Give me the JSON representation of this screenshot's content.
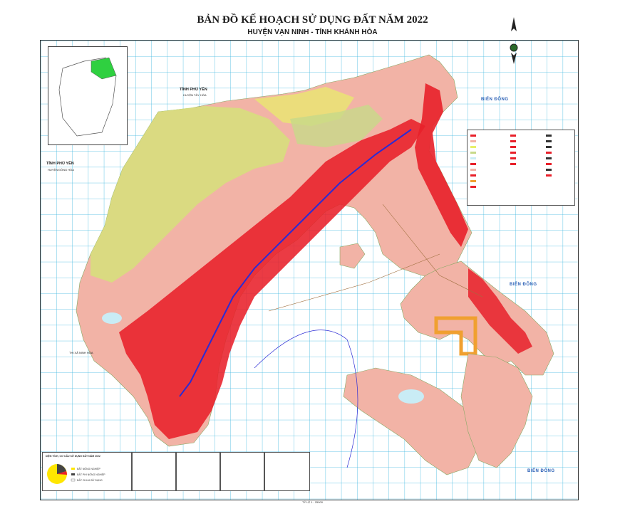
{
  "map": {
    "title": "BẢN ĐỒ KẾ HOẠCH SỬ DỤNG ĐẤT NĂM 2022",
    "subtitle": "HUYỆN VẠN NINH - TỈNH KHÁNH HÒA",
    "labels": {
      "tinh_phu_yen_top": "TỈNH PHÚ YÊN",
      "huyen_tay_hoa": "HUYỆN TÂY HÒA",
      "tinh_phu_yen_left": "TỈNH PHÚ YÊN",
      "huyen_dong_hoa": "HUYỆN ĐÔNG HÒA",
      "thi_xa_ninh_hoa": "THỊ XÃ NINH HÒA",
      "bien_dong_1": "BIỂN ĐÔNG",
      "bien_dong_2": "BIỂN ĐÔNG",
      "bien_dong_3": "BIỂN ĐÔNG"
    },
    "scale": "TỶ LỆ 1 : 25000",
    "pie_title": "DIỆN TÍCH, CƠ CẤU SỬ DỤNG ĐẤT NĂM 2022",
    "pie_legend": [
      "ĐẤT NÔNG NGHIỆP",
      "ĐẤT PHI NÔNG NGHIỆP",
      "ĐẤT CHƯA SỬ DỤNG"
    ],
    "colors": {
      "agri_yellow": "#e8f06a",
      "forest_green": "#c7d98a",
      "residential_pink": "#f2b3a6",
      "urban_red": "#e8202a",
      "water_blue": "#c9ecf5",
      "grid": "#3fb8e0",
      "road_blue": "#2b2bd4"
    }
  }
}
